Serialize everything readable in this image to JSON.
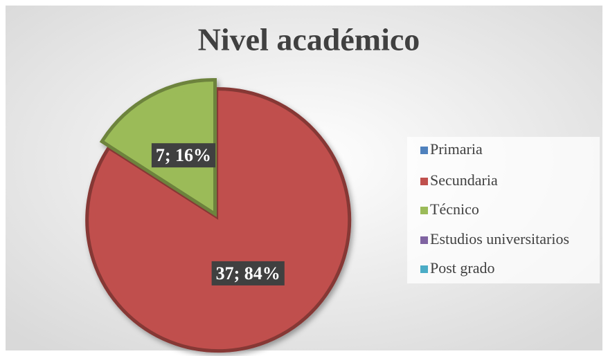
{
  "chart_data": {
    "type": "pie",
    "title": "Nivel académico",
    "categories": [
      "Primaria",
      "Secundaria",
      "Técnico",
      "Estudios universitarios",
      "Post grado"
    ],
    "values": [
      0,
      37,
      7,
      0,
      0
    ],
    "value_labels": [
      null,
      "37; 84%",
      "7; 16%",
      null,
      null
    ],
    "colors": [
      "#4f81bd",
      "#c0504d",
      "#9bbb59",
      "#8064a2",
      "#4bacc6"
    ],
    "legend": "right"
  }
}
